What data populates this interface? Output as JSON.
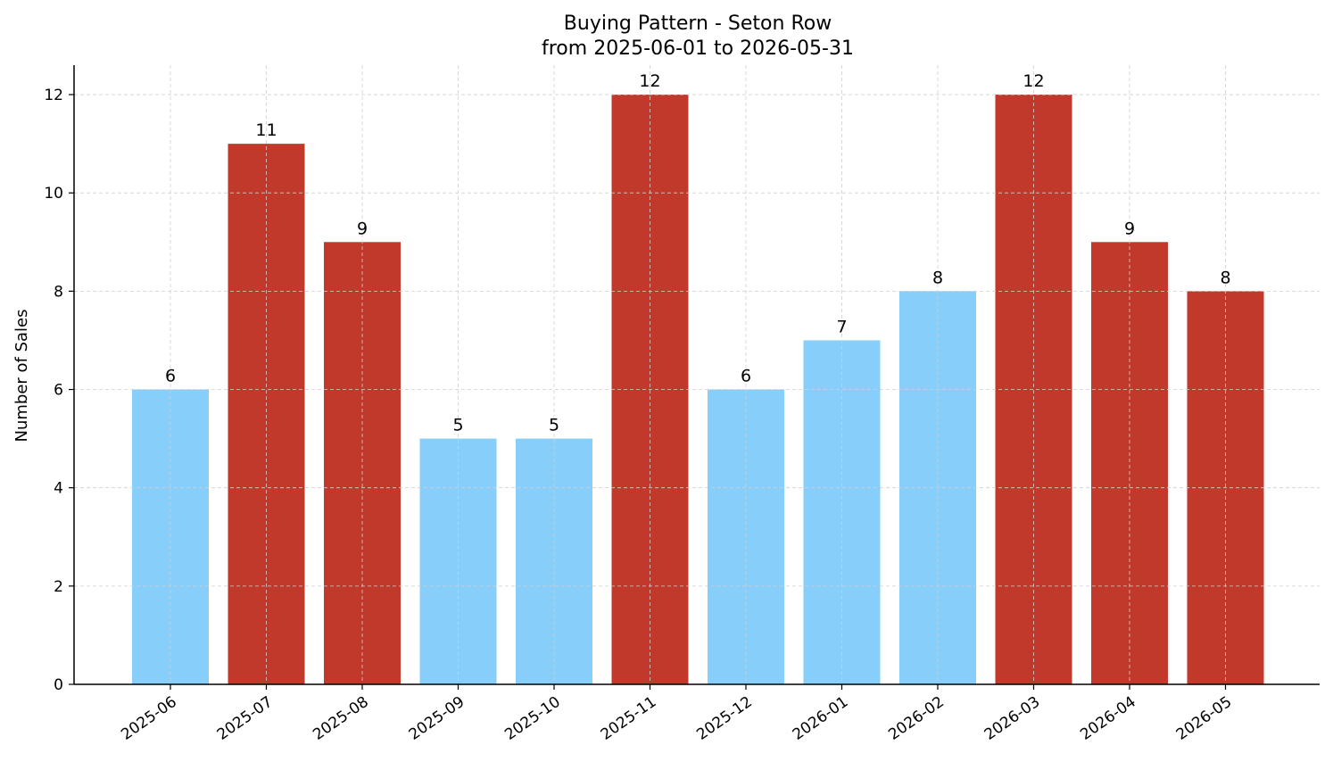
{
  "chart_data": {
    "type": "bar",
    "title_line1": "Buying Pattern - Seton Row",
    "title_line2": "from 2025-06-01 to 2026-05-31",
    "xlabel": "",
    "ylabel": "Number of Sales",
    "categories": [
      "2025-06",
      "2025-07",
      "2025-08",
      "2025-09",
      "2025-10",
      "2025-11",
      "2025-12",
      "2026-01",
      "2026-02",
      "2026-03",
      "2026-04",
      "2026-05"
    ],
    "values": [
      6,
      11,
      9,
      5,
      5,
      12,
      6,
      7,
      8,
      12,
      9,
      8
    ],
    "bar_colors": [
      "#87CEFA",
      "#C0392B",
      "#C0392B",
      "#87CEFA",
      "#87CEFA",
      "#C0392B",
      "#87CEFA",
      "#87CEFA",
      "#87CEFA",
      "#C0392B",
      "#C0392B",
      "#C0392B"
    ],
    "ylim": [
      0,
      12.6
    ],
    "yticks": [
      0,
      2,
      4,
      6,
      8,
      10,
      12
    ],
    "grid": true,
    "legend": "none"
  }
}
